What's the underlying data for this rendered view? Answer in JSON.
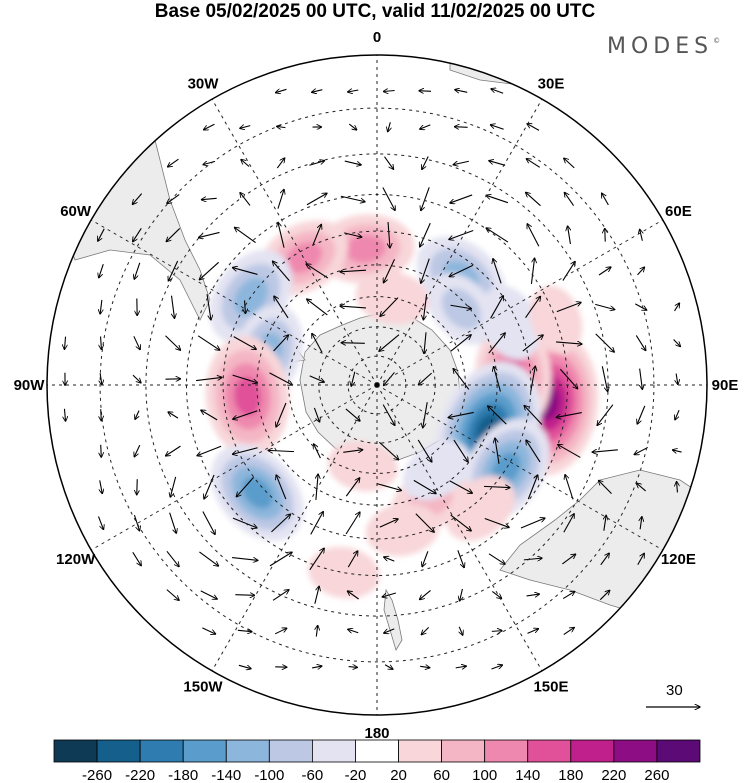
{
  "title": "Base 05/02/2025 00 UTC, valid 11/02/2025 00 UTC",
  "brand": "MODES",
  "brand_mark": "©",
  "longitude_labels": [
    {
      "label": "0",
      "lon": 0
    },
    {
      "label": "30E",
      "lon": 30
    },
    {
      "label": "60E",
      "lon": 60
    },
    {
      "label": "90E",
      "lon": 90
    },
    {
      "label": "120E",
      "lon": 120
    },
    {
      "label": "150E",
      "lon": 150
    },
    {
      "label": "180",
      "lon": 180
    },
    {
      "label": "150W",
      "lon": -150
    },
    {
      "label": "120W",
      "lon": -120
    },
    {
      "label": "90W",
      "lon": -90
    },
    {
      "label": "60W",
      "lon": -60
    },
    {
      "label": "30W",
      "lon": -30
    }
  ],
  "vector_reference": {
    "value": "30"
  },
  "colorbar": {
    "ticks": [
      "-260",
      "-220",
      "-180",
      "-140",
      "-100",
      "-60",
      "-20",
      "20",
      "60",
      "100",
      "140",
      "180",
      "220",
      "260"
    ],
    "colors": [
      "#0f3a56",
      "#145f8c",
      "#2f7db0",
      "#5a9ccb",
      "#8db6dc",
      "#bcc8e4",
      "#e3e3f2",
      "#ffffff",
      "#f8d6d9",
      "#f4b6c4",
      "#ef88ae",
      "#e0519a",
      "#c0208b",
      "#8c0d84",
      "#5c0a75"
    ]
  },
  "anomalies": [
    {
      "lat": -35,
      "lon": 96,
      "value": 250
    },
    {
      "lat": -45,
      "lon": 86,
      "value": 150
    },
    {
      "lat": -50,
      "lon": 112,
      "value": -240
    },
    {
      "lat": -40,
      "lon": 123,
      "value": -150
    },
    {
      "lat": -45,
      "lon": 38,
      "value": -120
    },
    {
      "lat": -52,
      "lon": 48,
      "value": -70
    },
    {
      "lat": -42,
      "lon": 65,
      "value": -60
    },
    {
      "lat": -45,
      "lon": -5,
      "value": 120
    },
    {
      "lat": -42,
      "lon": -30,
      "value": 110
    },
    {
      "lat": -40,
      "lon": -55,
      "value": -130
    },
    {
      "lat": -52,
      "lon": -73,
      "value": -110
    },
    {
      "lat": -47,
      "lon": -95,
      "value": 180
    },
    {
      "lat": -38,
      "lon": -132,
      "value": -150
    },
    {
      "lat": -48,
      "lon": 155,
      "value": 70
    },
    {
      "lat": -38,
      "lon": 140,
      "value": 60
    },
    {
      "lat": -42,
      "lon": 170,
      "value": 50
    },
    {
      "lat": -62,
      "lon": -170,
      "value": 40
    },
    {
      "lat": -30,
      "lon": -170,
      "value": 45
    },
    {
      "lat": -55,
      "lon": 145,
      "value": -50
    },
    {
      "lat": -60,
      "lon": 10,
      "value": 50
    },
    {
      "lat": -30,
      "lon": 70,
      "value": 40
    }
  ]
}
